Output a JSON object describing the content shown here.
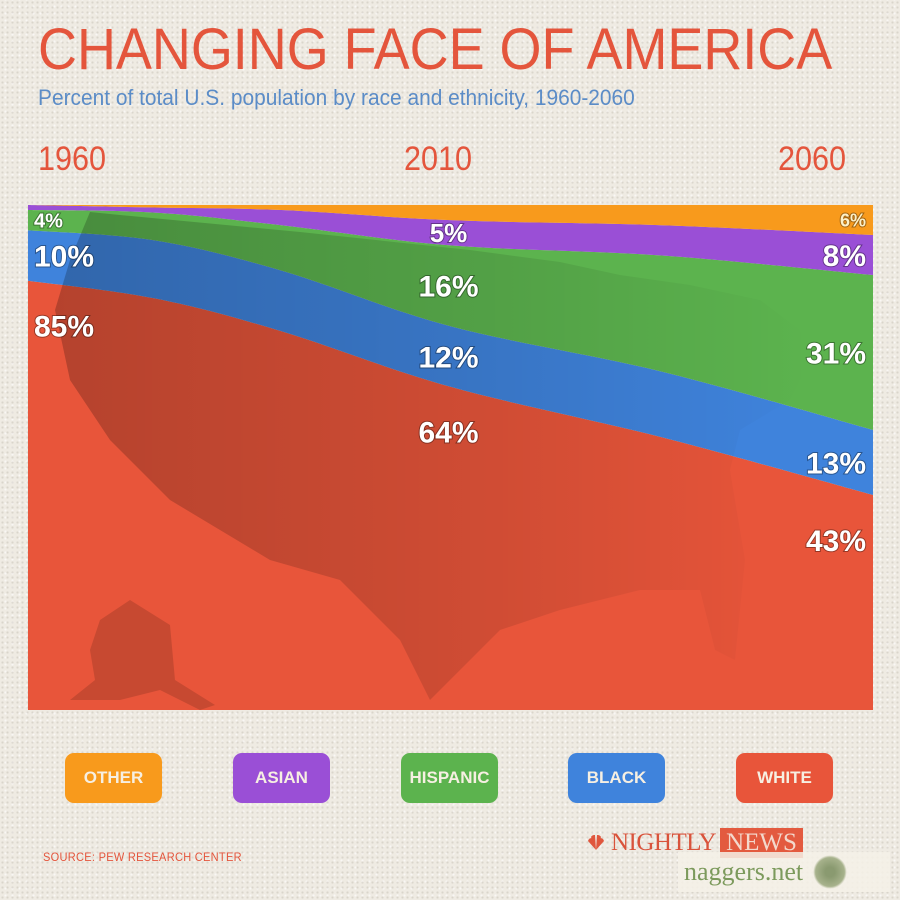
{
  "header": {
    "title": "CHANGING FACE OF AMERICA",
    "subtitle": "Percent of total U.S. population by race and ethnicity, 1960-2060"
  },
  "chart_data": {
    "type": "area",
    "stacked": true,
    "title": "CHANGING FACE OF AMERICA",
    "subtitle": "Percent of total U.S. population by race and ethnicity, 1960-2060",
    "xlabel": "",
    "ylabel": "Percent of total U.S. population",
    "x_tick_labels": [
      "1960",
      "2010",
      "2060"
    ],
    "xlim": [
      1960,
      2060
    ],
    "ylim": [
      0,
      100
    ],
    "grid": false,
    "legend_position": "bottom",
    "x": [
      1960,
      1975,
      1990,
      2010,
      2035,
      2060
    ],
    "x_note": "1975, 1990 and 2035 are intermediate points estimated from the area shapes; only 1960, 2010, 2060 are labeled",
    "stack_order_bottom_to_top": [
      "White",
      "Black",
      "Hispanic",
      "Asian",
      "Other"
    ],
    "series": [
      {
        "name": "White",
        "color": "#e8553a",
        "values": [
          85,
          81.5,
          75,
          64,
          54,
          43
        ]
      },
      {
        "name": "Black",
        "color": "#3f83dc",
        "values": [
          10,
          11.5,
          12,
          12,
          13,
          13
        ]
      },
      {
        "name": "Hispanic",
        "color": "#5cb34e",
        "values": [
          4,
          5.5,
          9,
          16,
          23,
          31
        ]
      },
      {
        "name": "Asian",
        "color": "#9a4fd6",
        "values": [
          1,
          1,
          3,
          5,
          6,
          8
        ]
      },
      {
        "name": "Other",
        "color": "#f89a1c",
        "values": [
          0,
          0.5,
          1,
          3,
          4,
          6
        ]
      }
    ],
    "annotations": [
      {
        "series": "Hispanic",
        "year": 1960,
        "text": "4%"
      },
      {
        "series": "Black",
        "year": 1960,
        "text": "10%"
      },
      {
        "series": "White",
        "year": 1960,
        "text": "85%"
      },
      {
        "series": "Asian",
        "year": 2010,
        "text": "5%"
      },
      {
        "series": "Hispanic",
        "year": 2010,
        "text": "16%"
      },
      {
        "series": "Black",
        "year": 2010,
        "text": "12%"
      },
      {
        "series": "White",
        "year": 2010,
        "text": "64%"
      },
      {
        "series": "Other",
        "year": 2060,
        "text": "6%"
      },
      {
        "series": "Asian",
        "year": 2060,
        "text": "8%"
      },
      {
        "series": "Hispanic",
        "year": 2060,
        "text": "31%"
      },
      {
        "series": "Black",
        "year": 2060,
        "text": "13%"
      },
      {
        "series": "White",
        "year": 2060,
        "text": "43%"
      }
    ]
  },
  "legend": {
    "items": [
      {
        "label": "OTHER",
        "color": "#f89a1c"
      },
      {
        "label": "ASIAN",
        "color": "#9a4fd6"
      },
      {
        "label": "HISPANIC",
        "color": "#5cb34e"
      },
      {
        "label": "BLACK",
        "color": "#3f83dc"
      },
      {
        "label": "WHITE",
        "color": "#e8553a"
      }
    ]
  },
  "footer": {
    "source": "SOURCE: PEW RESEARCH CENTER",
    "logo_nightly": "NIGHTLY",
    "logo_news": "NEWS",
    "logo_nbc": "NBC",
    "watermark": "naggers.net"
  }
}
